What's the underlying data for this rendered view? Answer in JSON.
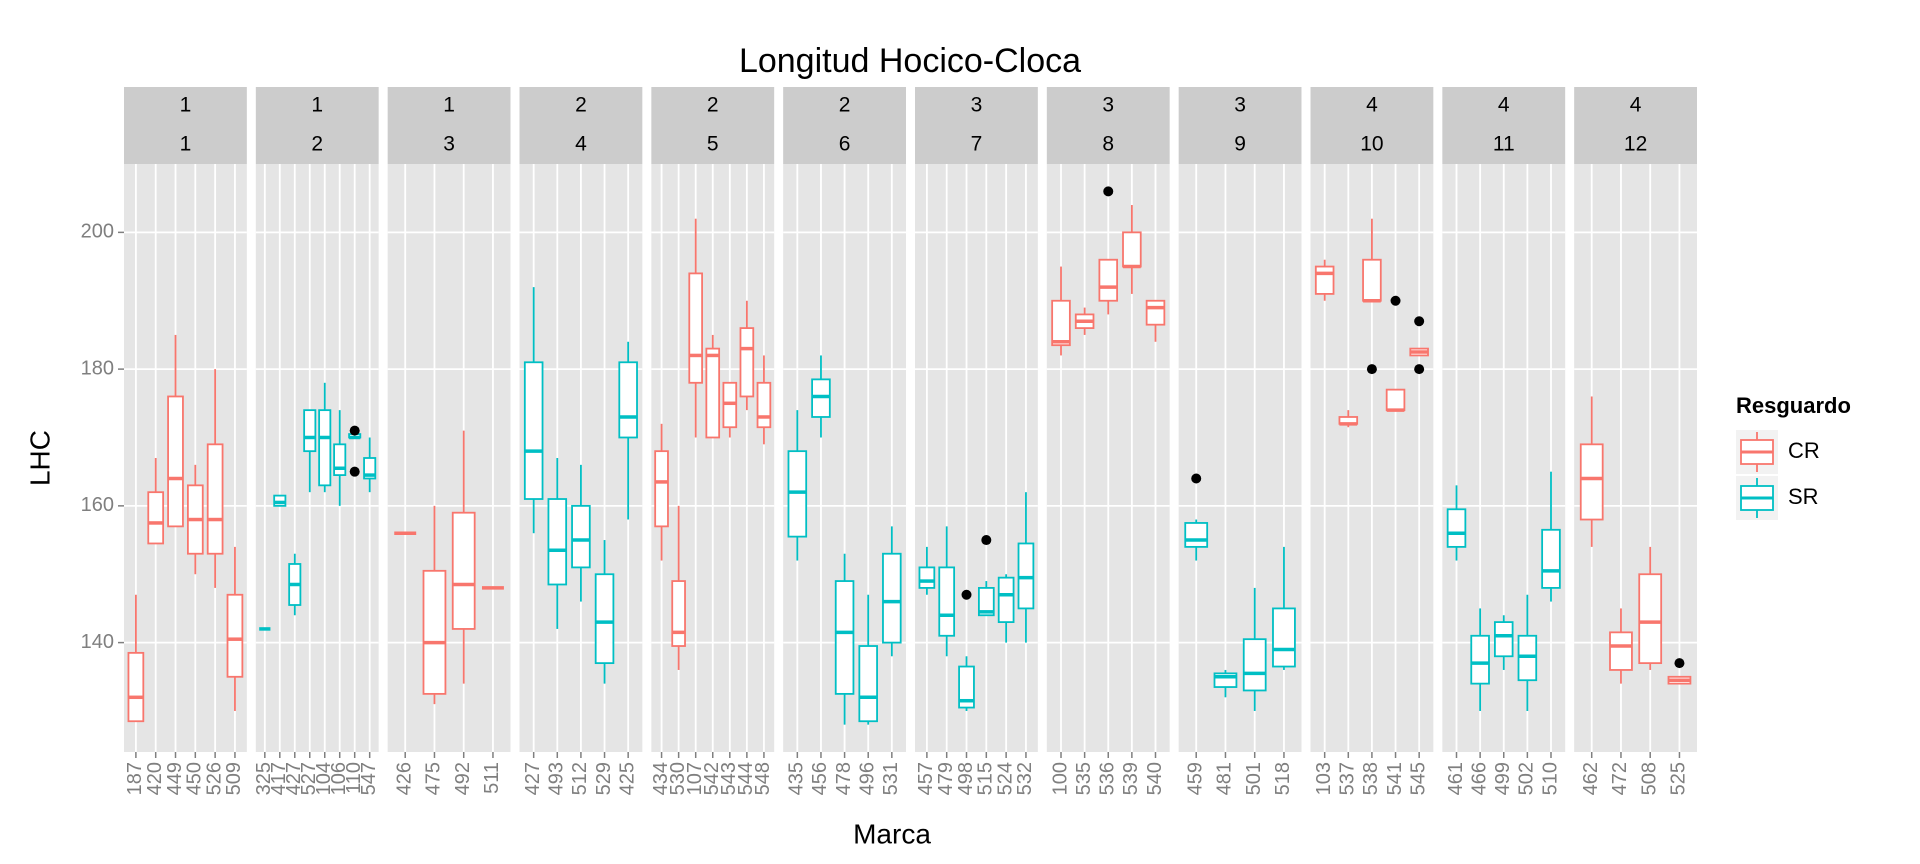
{
  "chart_data": {
    "type": "box",
    "title": "Longitud Hocico-Cloca",
    "x_label": "Marca",
    "y_label": "LHC",
    "legend_title": "Resguardo",
    "series": [
      {
        "name": "CR",
        "color": "#F8766D"
      },
      {
        "name": "SR",
        "color": "#00BFC4"
      }
    ],
    "ylim": [
      124,
      210
    ],
    "yticks": [
      140,
      160,
      180,
      200
    ],
    "grid": true,
    "panels": [
      {
        "strip": [
          "1",
          "1"
        ],
        "categories": [
          "187",
          "420",
          "449",
          "450",
          "526",
          "509"
        ],
        "boxes": [
          {
            "group": "CR",
            "min": 128.5,
            "q1": 128.5,
            "median": 132,
            "q3": 138.5,
            "max": 147
          },
          {
            "group": "CR",
            "min": 154.5,
            "q1": 154.5,
            "median": 157.5,
            "q3": 162,
            "max": 167
          },
          {
            "group": "CR",
            "min": 157,
            "q1": 157,
            "median": 164,
            "q3": 176,
            "max": 185
          },
          {
            "group": "CR",
            "min": 150,
            "q1": 153,
            "median": 158,
            "q3": 163,
            "max": 166
          },
          {
            "group": "CR",
            "min": 148,
            "q1": 153,
            "median": 158,
            "q3": 169,
            "max": 180
          },
          {
            "group": "CR",
            "min": 130,
            "q1": 135,
            "median": 140.5,
            "q3": 147,
            "max": 154
          }
        ]
      },
      {
        "strip": [
          "1",
          "2"
        ],
        "categories": [
          "325",
          "417",
          "427",
          "527",
          "104",
          "106",
          "110",
          "547"
        ],
        "boxes": [
          {
            "group": "SR",
            "min": 142,
            "q1": 142,
            "median": 142,
            "q3": 142,
            "max": 142
          },
          {
            "group": "SR",
            "min": 160,
            "q1": 160,
            "median": 160.5,
            "q3": 161.5,
            "max": 161.5
          },
          {
            "group": "SR",
            "min": 144,
            "q1": 145.5,
            "median": 148.5,
            "q3": 151.5,
            "max": 153
          },
          {
            "group": "SR",
            "min": 162,
            "q1": 168,
            "median": 170,
            "q3": 174,
            "max": 174
          },
          {
            "group": "SR",
            "min": 162,
            "q1": 163,
            "median": 170,
            "q3": 174,
            "max": 178
          },
          {
            "group": "SR",
            "min": 160,
            "q1": 164.5,
            "median": 165.5,
            "q3": 169,
            "max": 174
          },
          {
            "group": "SR",
            "min": 170,
            "q1": 170,
            "median": 170,
            "q3": 170.5,
            "max": 170.5,
            "outliers": [
              171,
              165
            ]
          },
          {
            "group": "SR",
            "min": 162,
            "q1": 164,
            "median": 164.5,
            "q3": 167,
            "max": 170
          }
        ]
      },
      {
        "strip": [
          "1",
          "3"
        ],
        "categories": [
          "426",
          "475",
          "492",
          "511"
        ],
        "boxes": [
          {
            "group": "CR",
            "min": 156,
            "q1": 156,
            "median": 156,
            "q3": 156,
            "max": 156
          },
          {
            "group": "CR",
            "min": 131,
            "q1": 132.5,
            "median": 140,
            "q3": 150.5,
            "max": 160
          },
          {
            "group": "CR",
            "min": 134,
            "q1": 142,
            "median": 148.5,
            "q3": 159,
            "max": 171
          },
          {
            "group": "CR",
            "min": 148,
            "q1": 148,
            "median": 148,
            "q3": 148,
            "max": 148
          }
        ]
      },
      {
        "strip": [
          "2",
          "4"
        ],
        "categories": [
          "427",
          "493",
          "512",
          "529",
          "425"
        ],
        "boxes": [
          {
            "group": "SR",
            "min": 156,
            "q1": 161,
            "median": 168,
            "q3": 181,
            "max": 192
          },
          {
            "group": "SR",
            "min": 142,
            "q1": 148.5,
            "median": 153.5,
            "q3": 161,
            "max": 167
          },
          {
            "group": "SR",
            "min": 146,
            "q1": 151,
            "median": 155,
            "q3": 160,
            "max": 166
          },
          {
            "group": "SR",
            "min": 134,
            "q1": 137,
            "median": 143,
            "q3": 150,
            "max": 155
          },
          {
            "group": "SR",
            "min": 158,
            "q1": 170,
            "median": 173,
            "q3": 181,
            "max": 184
          }
        ]
      },
      {
        "strip": [
          "2",
          "5"
        ],
        "categories": [
          "434",
          "530",
          "107",
          "542",
          "543",
          "544",
          "548"
        ],
        "boxes": [
          {
            "group": "CR",
            "min": 152,
            "q1": 157,
            "median": 163.5,
            "q3": 168,
            "max": 172
          },
          {
            "group": "CR",
            "min": 136,
            "q1": 139.5,
            "median": 141.5,
            "q3": 149,
            "max": 160
          },
          {
            "group": "CR",
            "min": 170,
            "q1": 178,
            "median": 182,
            "q3": 194,
            "max": 202
          },
          {
            "group": "CR",
            "min": 170,
            "q1": 170,
            "median": 182,
            "q3": 183,
            "max": 185
          },
          {
            "group": "CR",
            "min": 170,
            "q1": 171.5,
            "median": 175,
            "q3": 178,
            "max": 178
          },
          {
            "group": "CR",
            "min": 174,
            "q1": 176,
            "median": 183,
            "q3": 186,
            "max": 190
          },
          {
            "group": "CR",
            "min": 169,
            "q1": 171.5,
            "median": 173,
            "q3": 178,
            "max": 182
          }
        ]
      },
      {
        "strip": [
          "2",
          "6"
        ],
        "categories": [
          "435",
          "456",
          "478",
          "496",
          "531"
        ],
        "boxes": [
          {
            "group": "SR",
            "min": 152,
            "q1": 155.5,
            "median": 162,
            "q3": 168,
            "max": 174
          },
          {
            "group": "SR",
            "min": 170,
            "q1": 173,
            "median": 176,
            "q3": 178.5,
            "max": 182
          },
          {
            "group": "SR",
            "min": 128,
            "q1": 132.5,
            "median": 141.5,
            "q3": 149,
            "max": 153
          },
          {
            "group": "SR",
            "min": 128,
            "q1": 128.5,
            "median": 132,
            "q3": 139.5,
            "max": 147
          },
          {
            "group": "SR",
            "min": 138,
            "q1": 140,
            "median": 146,
            "q3": 153,
            "max": 157
          }
        ]
      },
      {
        "strip": [
          "3",
          "7"
        ],
        "categories": [
          "457",
          "479",
          "498",
          "515",
          "524",
          "532"
        ],
        "boxes": [
          {
            "group": "SR",
            "min": 147,
            "q1": 148,
            "median": 149,
            "q3": 151,
            "max": 154
          },
          {
            "group": "SR",
            "min": 138,
            "q1": 141,
            "median": 144,
            "q3": 151,
            "max": 157
          },
          {
            "group": "SR",
            "min": 130,
            "q1": 130.5,
            "median": 131.5,
            "q3": 136.5,
            "max": 138,
            "outliers": [
              147
            ]
          },
          {
            "group": "SR",
            "min": 144,
            "q1": 144,
            "median": 144.5,
            "q3": 148,
            "max": 149,
            "outliers": [
              155
            ]
          },
          {
            "group": "SR",
            "min": 140,
            "q1": 143,
            "median": 147,
            "q3": 149.5,
            "max": 150
          },
          {
            "group": "SR",
            "min": 140,
            "q1": 145,
            "median": 149.5,
            "q3": 154.5,
            "max": 162
          }
        ]
      },
      {
        "strip": [
          "3",
          "8"
        ],
        "categories": [
          "100",
          "535",
          "536",
          "539",
          "540"
        ],
        "boxes": [
          {
            "group": "CR",
            "min": 182,
            "q1": 183.5,
            "median": 184,
            "q3": 190,
            "max": 195
          },
          {
            "group": "CR",
            "min": 185,
            "q1": 186,
            "median": 187,
            "q3": 188,
            "max": 189
          },
          {
            "group": "CR",
            "min": 188,
            "q1": 190,
            "median": 192,
            "q3": 196,
            "max": 196,
            "outliers": [
              206
            ]
          },
          {
            "group": "CR",
            "min": 191,
            "q1": 195,
            "median": 195,
            "q3": 200,
            "max": 204
          },
          {
            "group": "CR",
            "min": 184,
            "q1": 186.5,
            "median": 189,
            "q3": 190,
            "max": 190
          }
        ]
      },
      {
        "strip": [
          "3",
          "9"
        ],
        "categories": [
          "459",
          "481",
          "501",
          "518"
        ],
        "boxes": [
          {
            "group": "SR",
            "min": 152,
            "q1": 154,
            "median": 155,
            "q3": 157.5,
            "max": 158,
            "outliers": [
              164
            ]
          },
          {
            "group": "SR",
            "min": 132,
            "q1": 133.5,
            "median": 135,
            "q3": 135.5,
            "max": 136
          },
          {
            "group": "SR",
            "min": 130,
            "q1": 133,
            "median": 135.5,
            "q3": 140.5,
            "max": 148
          },
          {
            "group": "SR",
            "min": 136,
            "q1": 136.5,
            "median": 139,
            "q3": 145,
            "max": 154
          }
        ]
      },
      {
        "strip": [
          "4",
          "10"
        ],
        "categories": [
          "103",
          "537",
          "538",
          "541",
          "545"
        ],
        "boxes": [
          {
            "group": "CR",
            "min": 190,
            "q1": 191,
            "median": 194,
            "q3": 195,
            "max": 196
          },
          {
            "group": "CR",
            "min": 171.5,
            "q1": 172,
            "median": 172,
            "q3": 173,
            "max": 174
          },
          {
            "group": "CR",
            "min": 190,
            "q1": 190,
            "median": 190,
            "q3": 196,
            "max": 202,
            "outliers": [
              180
            ]
          },
          {
            "group": "CR",
            "min": 174,
            "q1": 174,
            "median": 174,
            "q3": 177,
            "max": 177,
            "outliers": [
              190
            ]
          },
          {
            "group": "CR",
            "min": 182,
            "q1": 182,
            "median": 182.5,
            "q3": 183,
            "max": 183,
            "outliers": [
              187,
              180
            ]
          }
        ]
      },
      {
        "strip": [
          "4",
          "11"
        ],
        "categories": [
          "461",
          "466",
          "499",
          "502",
          "510"
        ],
        "boxes": [
          {
            "group": "SR",
            "min": 152,
            "q1": 154,
            "median": 156,
            "q3": 159.5,
            "max": 163
          },
          {
            "group": "SR",
            "min": 130,
            "q1": 134,
            "median": 137,
            "q3": 141,
            "max": 145
          },
          {
            "group": "SR",
            "min": 136,
            "q1": 138,
            "median": 141,
            "q3": 143,
            "max": 144
          },
          {
            "group": "SR",
            "min": 130,
            "q1": 134.5,
            "median": 138,
            "q3": 141,
            "max": 147
          },
          {
            "group": "SR",
            "min": 146,
            "q1": 148,
            "median": 150.5,
            "q3": 156.5,
            "max": 165
          }
        ]
      },
      {
        "strip": [
          "4",
          "12"
        ],
        "categories": [
          "462",
          "472",
          "508",
          "525"
        ],
        "boxes": [
          {
            "group": "CR",
            "min": 154,
            "q1": 158,
            "median": 164,
            "q3": 169,
            "max": 176
          },
          {
            "group": "CR",
            "min": 134,
            "q1": 136,
            "median": 139.5,
            "q3": 141.5,
            "max": 145
          },
          {
            "group": "CR",
            "min": 136,
            "q1": 137,
            "median": 143,
            "q3": 150,
            "max": 154
          },
          {
            "group": "CR",
            "min": 134,
            "q1": 134,
            "median": 134.5,
            "q3": 135,
            "max": 135,
            "outliers": [
              137
            ]
          }
        ]
      }
    ]
  }
}
